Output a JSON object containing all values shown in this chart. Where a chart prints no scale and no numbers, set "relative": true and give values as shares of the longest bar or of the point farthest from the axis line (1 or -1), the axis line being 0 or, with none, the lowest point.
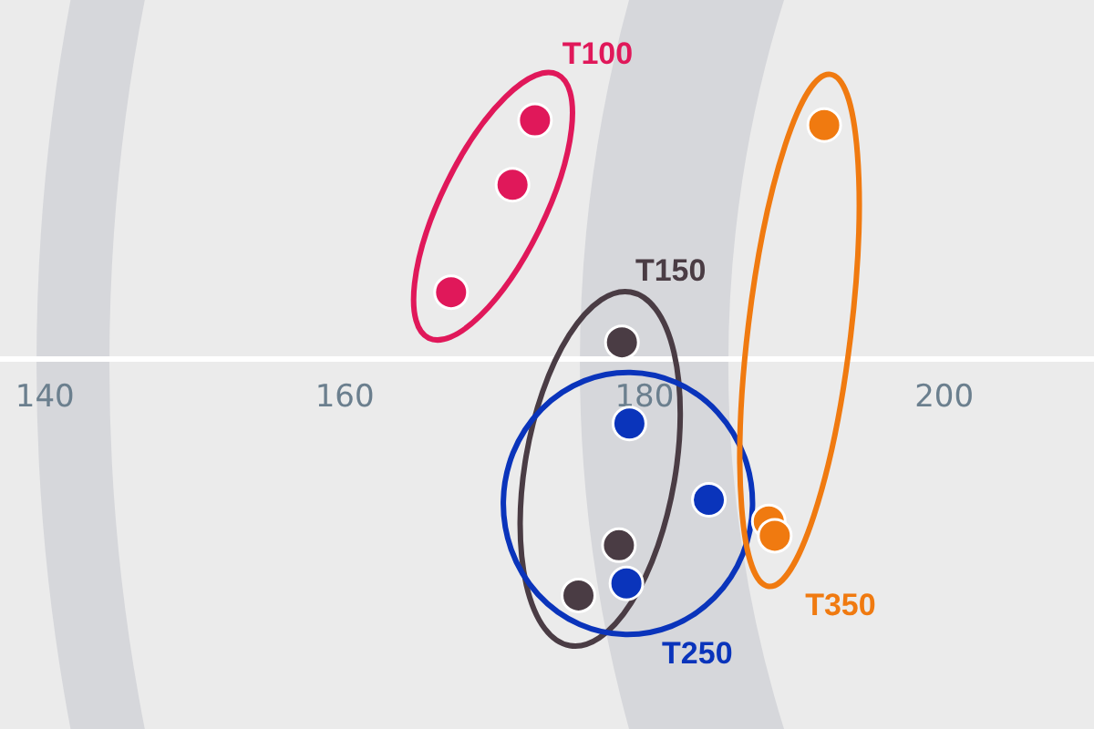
{
  "chart_data": {
    "type": "scatter",
    "relative": true,
    "xlim": [
      137,
      210
    ],
    "xticks": [
      140,
      160,
      180,
      200
    ],
    "marker": "circle",
    "series": [
      {
        "name": "T100",
        "color": "#e0185a",
        "x": [
          172.7,
          171.2,
          167.1
        ],
        "values": [
          1.0,
          0.73,
          0.28
        ]
      },
      {
        "name": "T150",
        "color": "#4a3c44",
        "x": [
          178.5,
          178.3,
          175.6
        ],
        "values": [
          0.07,
          -0.78,
          -0.99
        ]
      },
      {
        "name": "T250",
        "color": "#0a34bb",
        "x": [
          179.0,
          184.3,
          178.8
        ],
        "values": [
          -0.27,
          -0.59,
          -0.94
        ]
      },
      {
        "name": "T350",
        "color": "#f07a10",
        "x": [
          192.0,
          188.3,
          188.7
        ],
        "values": [
          0.98,
          -0.68,
          -0.74
        ]
      }
    ]
  }
}
